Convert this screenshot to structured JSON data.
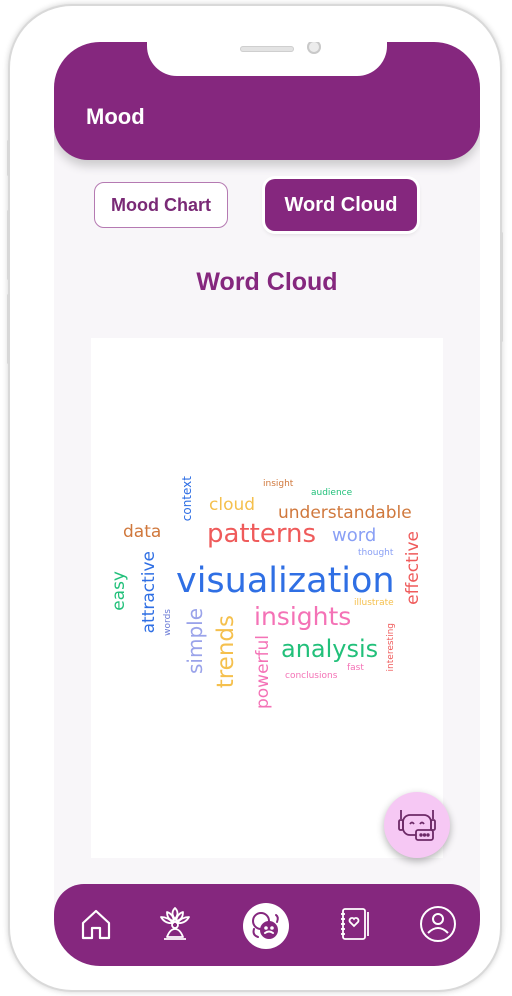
{
  "header": {
    "title": "Mood"
  },
  "tabs": [
    {
      "label": "Mood Chart",
      "active": false
    },
    {
      "label": "Word Cloud",
      "active": true
    }
  ],
  "section": {
    "title": "Word Cloud"
  },
  "word_cloud": [
    {
      "text": "visualization",
      "color": "#2f6fe4"
    },
    {
      "text": "patterns",
      "color": "#ef5b5b"
    },
    {
      "text": "insights",
      "color": "#f472b6"
    },
    {
      "text": "analysis",
      "color": "#22c07a"
    },
    {
      "text": "understandable",
      "color": "#d0783c"
    },
    {
      "text": "cloud",
      "color": "#f5c04d"
    },
    {
      "text": "word",
      "color": "#8aa0f5"
    },
    {
      "text": "data",
      "color": "#d0783c"
    },
    {
      "text": "effective",
      "color": "#ef5b5b"
    },
    {
      "text": "trends",
      "color": "#f5c04d"
    },
    {
      "text": "simple",
      "color": "#9aa3ea"
    },
    {
      "text": "attractive",
      "color": "#2f6fe4"
    },
    {
      "text": "easy",
      "color": "#22c07a"
    },
    {
      "text": "context",
      "color": "#2f6fe4"
    },
    {
      "text": "powerful",
      "color": "#f472b6"
    },
    {
      "text": "insight",
      "color": "#d0783c"
    },
    {
      "text": "audience",
      "color": "#22c07a"
    },
    {
      "text": "thought",
      "color": "#8aa0f5"
    },
    {
      "text": "illustrate",
      "color": "#f5c04d"
    },
    {
      "text": "words",
      "color": "#6b7bd6"
    },
    {
      "text": "fast",
      "color": "#f472b6"
    },
    {
      "text": "conclusions",
      "color": "#f472b6"
    },
    {
      "text": "interesting",
      "color": "#ef5b5b"
    }
  ],
  "nav": [
    {
      "icon": "home-icon"
    },
    {
      "icon": "meditation-icon"
    },
    {
      "icon": "mood-icon",
      "active": true
    },
    {
      "icon": "journal-icon"
    },
    {
      "icon": "profile-icon"
    }
  ],
  "colors": {
    "brand": "#85277e",
    "fab": "#f6c8f4"
  }
}
